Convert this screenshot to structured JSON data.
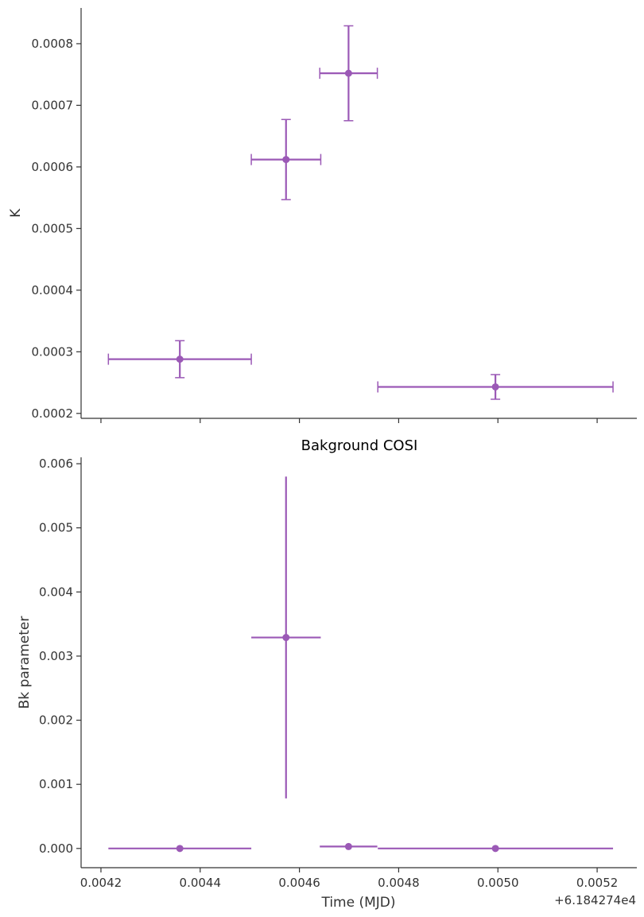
{
  "colors": {
    "series": "#9b59b6",
    "axis": "#333333"
  },
  "chart_data": [
    {
      "type": "scatter",
      "title": "",
      "xlabel": "",
      "ylabel": "K",
      "xlim": [
        0.00416,
        0.00528
      ],
      "ylim": [
        0.000192,
        0.000858
      ],
      "xticks": [
        0.0042,
        0.0044,
        0.0046,
        0.0048,
        0.005,
        0.0052
      ],
      "xtick_labels_visible": false,
      "yticks": [
        0.0002,
        0.0003,
        0.0004,
        0.0005,
        0.0006,
        0.0007,
        0.0008
      ],
      "ytick_labels": [
        "0.0002",
        "0.0003",
        "0.0004",
        "0.0005",
        "0.0006",
        "0.0007",
        "0.0008"
      ],
      "grid": false,
      "errorbar_caps": true,
      "points": [
        {
          "x": 0.004359,
          "y": 0.000288,
          "xerr": 0.000144,
          "yerr_low": 3e-05,
          "yerr_high": 3e-05
        },
        {
          "x": 0.004573,
          "y": 0.000612,
          "xerr": 7e-05,
          "yerr_low": 6.5e-05,
          "yerr_high": 6.5e-05
        },
        {
          "x": 0.004699,
          "y": 0.000752,
          "xerr": 5.8e-05,
          "yerr_low": 7.7e-05,
          "yerr_high": 7.7e-05
        },
        {
          "x": 0.004995,
          "y": 0.000243,
          "xerr": 0.000237,
          "yerr_low": 2e-05,
          "yerr_high": 2e-05
        }
      ]
    },
    {
      "type": "scatter",
      "title": "Bakground COSI",
      "xlabel": "Time (MJD)",
      "ylabel": "Bk parameter",
      "x_offset_label": "+6.184274e4",
      "xlim": [
        0.00416,
        0.00528
      ],
      "ylim": [
        -0.0003,
        0.0061
      ],
      "xticks": [
        0.0042,
        0.0044,
        0.0046,
        0.0048,
        0.005,
        0.0052
      ],
      "xtick_labels": [
        "0.0042",
        "0.0044",
        "0.0046",
        "0.0048",
        "0.0050",
        "0.0052"
      ],
      "yticks": [
        0.0,
        0.001,
        0.002,
        0.003,
        0.004,
        0.005,
        0.006
      ],
      "ytick_labels": [
        "0.000",
        "0.001",
        "0.002",
        "0.003",
        "0.004",
        "0.005",
        "0.006"
      ],
      "grid": false,
      "errorbar_caps": false,
      "points": [
        {
          "x": 0.004359,
          "y": 0.0,
          "xerr": 0.000144,
          "yerr_low": 0.0,
          "yerr_high": 0.0
        },
        {
          "x": 0.004573,
          "y": 0.00329,
          "xerr": 7e-05,
          "yerr_low": 0.00251,
          "yerr_high": 0.00251
        },
        {
          "x": 0.004699,
          "y": 3e-05,
          "xerr": 5.8e-05,
          "yerr_low": 0.0,
          "yerr_high": 0.0
        },
        {
          "x": 0.004995,
          "y": 0.0,
          "xerr": 0.000237,
          "yerr_low": 0.0,
          "yerr_high": 0.0
        }
      ]
    }
  ]
}
